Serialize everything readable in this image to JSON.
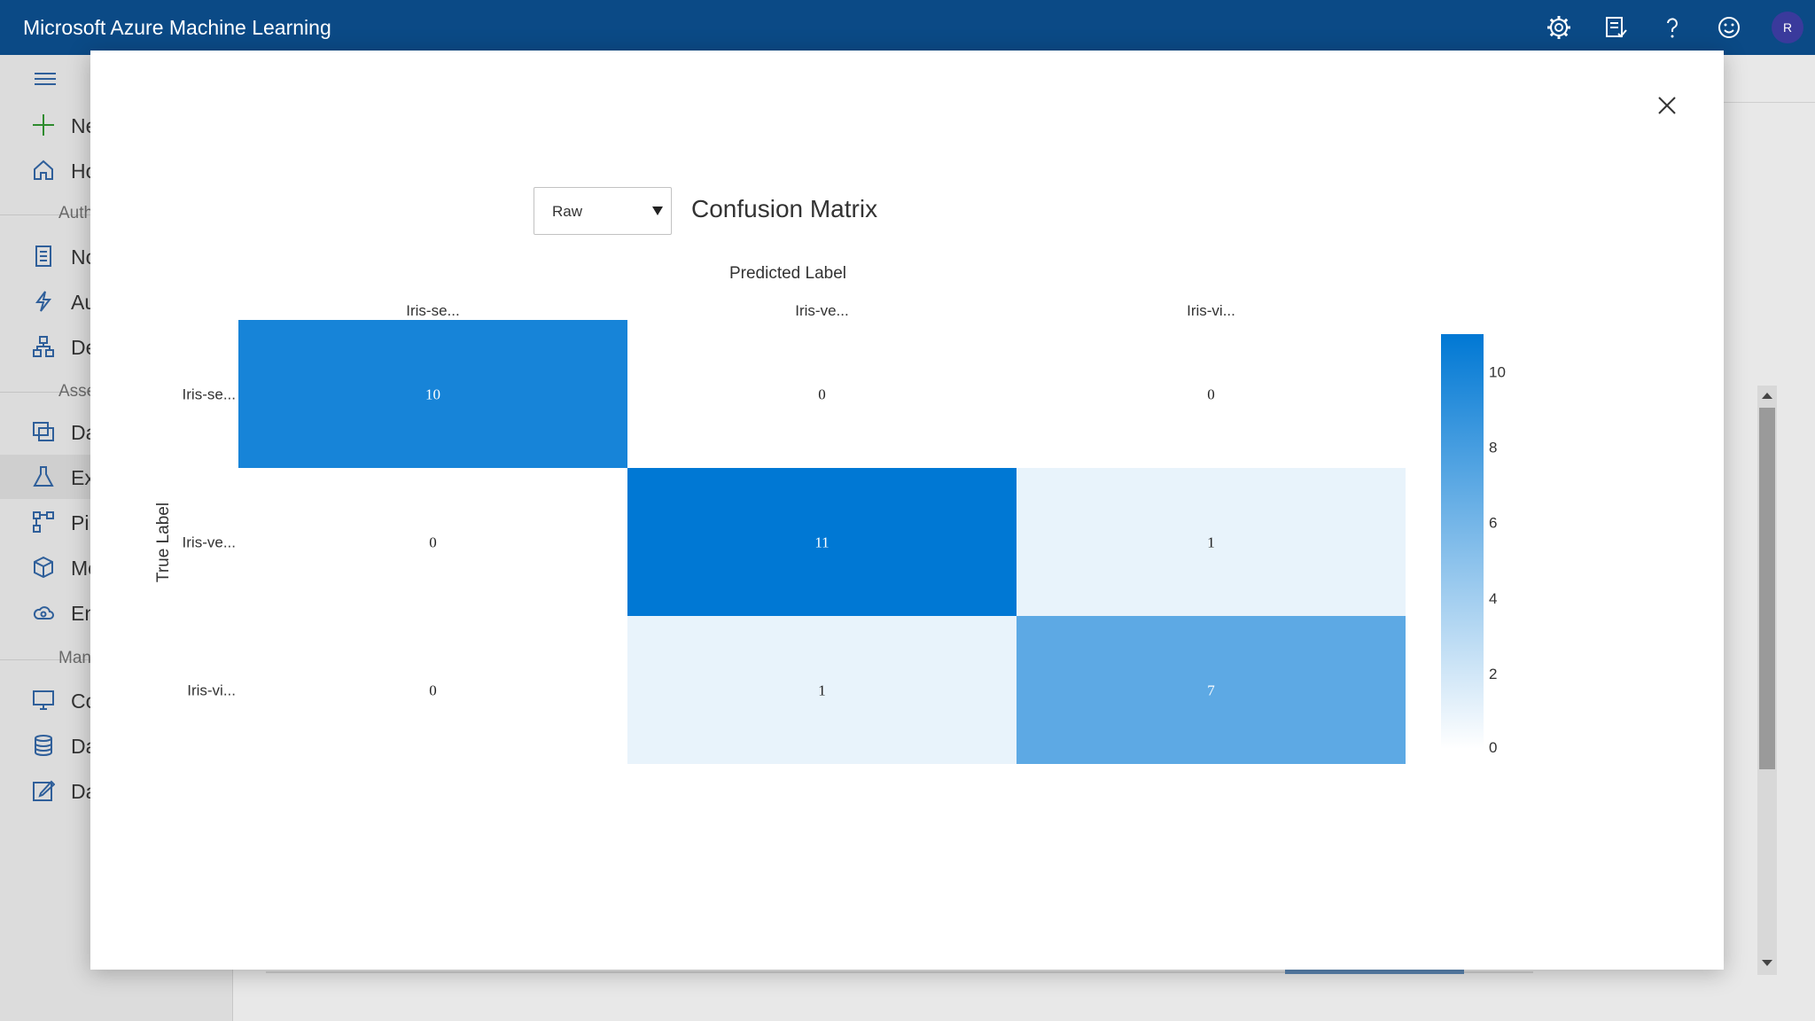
{
  "app": {
    "title": "Microsoft Azure Machine Learning",
    "avatar_initial": "R"
  },
  "topbar_icons": [
    "gear-icon",
    "feedback-list-icon",
    "help-icon",
    "smiley-icon"
  ],
  "nav": {
    "items": [
      {
        "name": "new",
        "label": "Ne",
        "icon": "plus-icon"
      },
      {
        "name": "home",
        "label": "Ho",
        "icon": "home-icon"
      },
      {
        "name": "notebooks",
        "label": "No",
        "icon": "notebook-icon"
      },
      {
        "name": "automated-ml",
        "label": "Au",
        "icon": "lightning-icon"
      },
      {
        "name": "designer",
        "label": "De",
        "icon": "designer-icon"
      },
      {
        "name": "datasets",
        "label": "Da",
        "icon": "dataset-icon"
      },
      {
        "name": "experiments",
        "label": "Ex",
        "icon": "flask-icon"
      },
      {
        "name": "pipelines",
        "label": "Pi",
        "icon": "pipeline-icon"
      },
      {
        "name": "models",
        "label": "Mo",
        "icon": "cube-icon"
      },
      {
        "name": "endpoints",
        "label": "En",
        "icon": "cloud-icon"
      },
      {
        "name": "compute",
        "label": "Co",
        "icon": "monitor-icon"
      },
      {
        "name": "datastores",
        "label": "Da",
        "icon": "database-icon"
      },
      {
        "name": "data-labeling",
        "label": "Da",
        "icon": "edit-icon"
      }
    ],
    "sections": [
      "Auth",
      "Asse",
      "Man"
    ]
  },
  "modal": {
    "selector_value": "Raw",
    "chart_title": "Confusion Matrix"
  },
  "chart_data": {
    "type": "heatmap",
    "title": "Confusion Matrix",
    "xlabel": "Predicted Label",
    "ylabel": "True Label",
    "x_categories": [
      "Iris-se...",
      "Iris-ve...",
      "Iris-vi..."
    ],
    "y_categories": [
      "Iris-se...",
      "Iris-ve...",
      "Iris-vi..."
    ],
    "values": [
      [
        10,
        0,
        0
      ],
      [
        0,
        11,
        1
      ],
      [
        0,
        1,
        7
      ]
    ],
    "colorscale": [
      "#ffffff",
      "#0078d4"
    ],
    "zmin": 0,
    "zmax": 11,
    "colorbar_ticks": [
      0,
      2,
      4,
      6,
      8,
      10
    ]
  }
}
